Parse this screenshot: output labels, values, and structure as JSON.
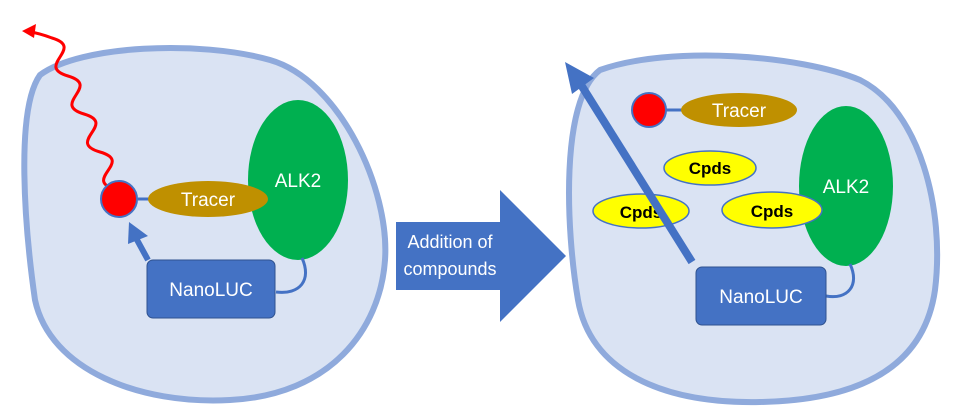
{
  "before_panel": {
    "tracer_label": "Tracer",
    "alk2_label": "ALK2",
    "nanoluc_label": "NanoLUC"
  },
  "process_arrow": {
    "line1": "Addition of",
    "line2": "compounds"
  },
  "after_panel": {
    "tracer_label": "Tracer",
    "alk2_label": "ALK2",
    "nanoluc_label": "NanoLUC",
    "compounds": [
      "Cpds",
      "Cpds",
      "Cpds"
    ]
  },
  "colors": {
    "cell_fill": "#dae3f3",
    "cell_border": "#8faadc",
    "nanoluc": "#4472c4",
    "alk2": "#00b050",
    "tracer": "#bf9000",
    "fluorophore": "#ff0000",
    "compound": "#ffff00",
    "emission": "#ff0000"
  }
}
